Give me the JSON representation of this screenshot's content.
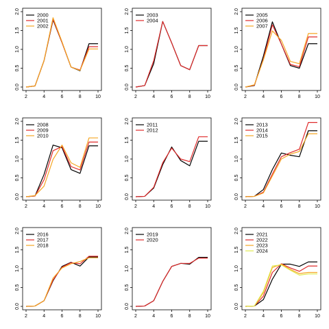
{
  "colors": {
    "black": "#000000",
    "red": "#df2a2a",
    "orange": "#f5a623",
    "yellow": "#e1e94c"
  },
  "chart_data": [
    {
      "type": "line",
      "panel": "2000-2002",
      "x": [
        2,
        3,
        4,
        5,
        6,
        7,
        8,
        9,
        10
      ],
      "xlim": [
        2,
        10
      ],
      "ylim": [
        0,
        2.0
      ],
      "xticks": [
        2,
        4,
        6,
        8,
        10
      ],
      "yticks": [
        "0.0",
        "0.5",
        "1.0",
        "1.5",
        "2.0"
      ],
      "legend_position": "top-left",
      "series": [
        {
          "name": "2000",
          "color": "black",
          "values": [
            0,
            0.03,
            0.7,
            1.78,
            1.18,
            0.53,
            0.43,
            1.15,
            1.15
          ]
        },
        {
          "name": "2001",
          "color": "red",
          "values": [
            0,
            0.03,
            0.7,
            1.8,
            1.18,
            0.53,
            0.45,
            1.07,
            1.07
          ]
        },
        {
          "name": "2002",
          "color": "orange",
          "values": [
            0,
            0.03,
            0.7,
            1.84,
            1.2,
            0.53,
            0.44,
            1.01,
            1.01
          ]
        }
      ]
    },
    {
      "type": "line",
      "panel": "2003-2004",
      "x": [
        2,
        3,
        4,
        5,
        6,
        7,
        8,
        9,
        10
      ],
      "xlim": [
        2,
        10
      ],
      "ylim": [
        0,
        2.0
      ],
      "xticks": [
        2,
        4,
        6,
        8,
        10
      ],
      "yticks": [
        "0.0",
        "0.5",
        "1.0",
        "1.5",
        "2.0"
      ],
      "legend_position": "top-left",
      "series": [
        {
          "name": "2003",
          "color": "black",
          "values": [
            0,
            0.04,
            0.62,
            1.74,
            1.17,
            0.57,
            0.46,
            1.1,
            1.1
          ]
        },
        {
          "name": "2004",
          "color": "red",
          "values": [
            0,
            0.04,
            0.7,
            1.74,
            1.17,
            0.57,
            0.46,
            1.1,
            1.1
          ]
        }
      ]
    },
    {
      "type": "line",
      "panel": "2005-2007",
      "x": [
        2,
        3,
        4,
        5,
        6,
        7,
        8,
        9,
        10
      ],
      "xlim": [
        2,
        10
      ],
      "ylim": [
        0,
        2.0
      ],
      "xticks": [
        2,
        4,
        6,
        8,
        10
      ],
      "yticks": [
        "0.0",
        "0.5",
        "1.0",
        "1.5",
        "2.0"
      ],
      "legend_position": "top-left",
      "series": [
        {
          "name": "2005",
          "color": "black",
          "values": [
            0,
            0.04,
            0.82,
            1.73,
            1.14,
            0.57,
            0.5,
            1.15,
            1.15
          ]
        },
        {
          "name": "2006",
          "color": "red",
          "values": [
            0,
            0.05,
            0.74,
            1.65,
            1.14,
            0.6,
            0.54,
            1.33,
            1.33
          ]
        },
        {
          "name": "2007",
          "color": "orange",
          "values": [
            0,
            0.06,
            0.72,
            1.49,
            1.24,
            0.68,
            0.62,
            1.42,
            1.42
          ]
        }
      ]
    },
    {
      "type": "line",
      "panel": "2008-2010",
      "x": [
        2,
        3,
        4,
        5,
        6,
        7,
        8,
        9,
        10
      ],
      "xlim": [
        2,
        10
      ],
      "ylim": [
        0,
        2.0
      ],
      "xticks": [
        2,
        4,
        6,
        8,
        10
      ],
      "yticks": [
        "0.0",
        "0.5",
        "1.0",
        "1.5",
        "2.0"
      ],
      "legend_position": "top-left",
      "series": [
        {
          "name": "2008",
          "color": "black",
          "values": [
            0,
            0.02,
            0.59,
            1.37,
            1.3,
            0.72,
            0.62,
            1.35,
            1.35
          ]
        },
        {
          "name": "2009",
          "color": "red",
          "values": [
            0,
            0.02,
            0.45,
            1.22,
            1.33,
            0.8,
            0.71,
            1.45,
            1.45
          ]
        },
        {
          "name": "2010",
          "color": "orange",
          "values": [
            0,
            0.03,
            0.28,
            0.99,
            1.37,
            0.9,
            0.78,
            1.56,
            1.56
          ]
        }
      ]
    },
    {
      "type": "line",
      "panel": "2011-2012",
      "x": [
        2,
        3,
        4,
        5,
        6,
        7,
        8,
        9,
        10
      ],
      "xlim": [
        2,
        10
      ],
      "ylim": [
        0,
        2.0
      ],
      "xticks": [
        2,
        4,
        6,
        8,
        10
      ],
      "yticks": [
        "0.0",
        "0.5",
        "1.0",
        "1.5",
        "2.0"
      ],
      "legend_position": "top-left",
      "series": [
        {
          "name": "2011",
          "color": "black",
          "values": [
            0,
            0.01,
            0.23,
            0.85,
            1.32,
            0.96,
            0.82,
            1.47,
            1.47
          ]
        },
        {
          "name": "2012",
          "color": "red",
          "values": [
            0,
            0.01,
            0.25,
            0.9,
            1.29,
            1.0,
            0.93,
            1.59,
            1.59
          ]
        }
      ]
    },
    {
      "type": "line",
      "panel": "2013-2015",
      "x": [
        2,
        3,
        4,
        5,
        6,
        7,
        8,
        9,
        10
      ],
      "xlim": [
        2,
        10
      ],
      "ylim": [
        0,
        2.0
      ],
      "xticks": [
        2,
        4,
        6,
        8,
        10
      ],
      "yticks": [
        "0.0",
        "0.5",
        "1.0",
        "1.5",
        "2.0"
      ],
      "legend_position": "top-left",
      "series": [
        {
          "name": "2013",
          "color": "black",
          "values": [
            0,
            0.01,
            0.19,
            0.72,
            1.16,
            1.1,
            1.06,
            1.75,
            1.75
          ]
        },
        {
          "name": "2014",
          "color": "red",
          "values": [
            0,
            0.01,
            0.12,
            0.6,
            1.06,
            1.17,
            1.26,
            1.97,
            1.97
          ]
        },
        {
          "name": "2015",
          "color": "orange",
          "values": [
            0,
            0.01,
            0.1,
            0.55,
            1.0,
            1.13,
            1.2,
            1.67,
            1.67
          ]
        }
      ]
    },
    {
      "type": "line",
      "panel": "2016-2018",
      "x": [
        2,
        3,
        4,
        5,
        6,
        7,
        8,
        9,
        10
      ],
      "xlim": [
        2,
        10
      ],
      "ylim": [
        0,
        2.0
      ],
      "xticks": [
        2,
        4,
        6,
        8,
        10
      ],
      "yticks": [
        "0.0",
        "0.5",
        "1.0",
        "1.5",
        "2.0"
      ],
      "legend_position": "top-left",
      "series": [
        {
          "name": "2016",
          "color": "black",
          "values": [
            0,
            0.01,
            0.15,
            0.68,
            1.06,
            1.17,
            1.07,
            1.31,
            1.31
          ]
        },
        {
          "name": "2017",
          "color": "red",
          "values": [
            0,
            0.01,
            0.15,
            0.7,
            1.04,
            1.16,
            1.13,
            1.33,
            1.33
          ]
        },
        {
          "name": "2018",
          "color": "orange",
          "values": [
            0,
            0.01,
            0.15,
            0.75,
            1.02,
            1.13,
            1.19,
            1.29,
            1.29
          ]
        }
      ]
    },
    {
      "type": "line",
      "panel": "2019-2020",
      "x": [
        2,
        3,
        4,
        5,
        6,
        7,
        8,
        9,
        10
      ],
      "xlim": [
        2,
        10
      ],
      "ylim": [
        0,
        2.0
      ],
      "xticks": [
        2,
        4,
        6,
        8,
        10
      ],
      "yticks": [
        "0.0",
        "0.5",
        "1.0",
        "1.5",
        "2.0"
      ],
      "legend_position": "top-left",
      "series": [
        {
          "name": "2019",
          "color": "black",
          "values": [
            0,
            0.01,
            0.15,
            0.66,
            1.06,
            1.14,
            1.12,
            1.3,
            1.3
          ]
        },
        {
          "name": "2020",
          "color": "red",
          "values": [
            0,
            0.01,
            0.15,
            0.66,
            1.06,
            1.14,
            1.14,
            1.28,
            1.28
          ]
        }
      ]
    },
    {
      "type": "line",
      "panel": "2021-2024",
      "x": [
        2,
        3,
        4,
        5,
        6,
        7,
        8,
        9,
        10
      ],
      "xlim": [
        2,
        10
      ],
      "ylim": [
        0,
        2.0
      ],
      "xticks": [
        2,
        4,
        6,
        8,
        10
      ],
      "yticks": [
        "0.0",
        "0.5",
        "1.0",
        "1.5",
        "2.0"
      ],
      "legend_position": "top-left",
      "series": [
        {
          "name": "2021",
          "color": "black",
          "values": [
            0,
            0.01,
            0.18,
            0.72,
            1.12,
            1.12,
            1.06,
            1.18,
            1.18
          ]
        },
        {
          "name": "2022",
          "color": "red",
          "values": [
            0,
            0.01,
            0.27,
            0.9,
            1.13,
            1.02,
            0.93,
            1.07,
            1.07
          ]
        },
        {
          "name": "2023",
          "color": "orange",
          "values": [
            0,
            0.01,
            0.36,
            1.03,
            1.12,
            0.98,
            0.87,
            0.9,
            0.9
          ]
        },
        {
          "name": "2024",
          "color": "yellow",
          "values": [
            0,
            0.01,
            0.4,
            1.07,
            1.1,
            0.96,
            0.83,
            0.86,
            0.86
          ]
        }
      ]
    }
  ]
}
